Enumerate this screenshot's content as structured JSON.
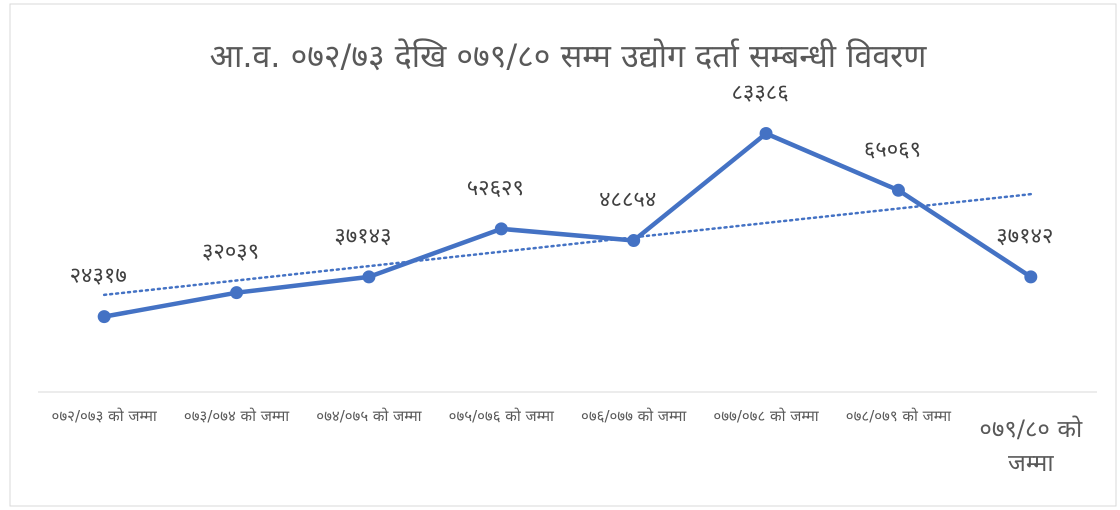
{
  "chart_data": {
    "type": "line",
    "title": "आ.व. ०७२/७३ देखि ०७९/८० सम्म उद्योग दर्ता सम्बन्धी विवरण",
    "categories": [
      "०७२/०७३ को जम्मा",
      "०७३/०७४ को जम्मा",
      "०७४/०७५ को जम्मा",
      "०७५/०७६ को जम्मा",
      "०७६/०७७ को जम्मा",
      "०७७/०७८ को जम्मा",
      "०७८/०७९ को जम्मा",
      "०७९/८० को जम्मा"
    ],
    "values": [
      24317,
      32039,
      37143,
      52629,
      48854,
      83386,
      65069,
      37142
    ],
    "value_labels": [
      "२४३१७",
      "३२०३९",
      "३७१४३",
      "५२६२९",
      "४८८५४",
      "८३३८६",
      "६५०६९",
      "३७१४२"
    ],
    "color": "#4472c4",
    "ylim": [
      0,
      90000
    ],
    "trendline": "linear"
  }
}
